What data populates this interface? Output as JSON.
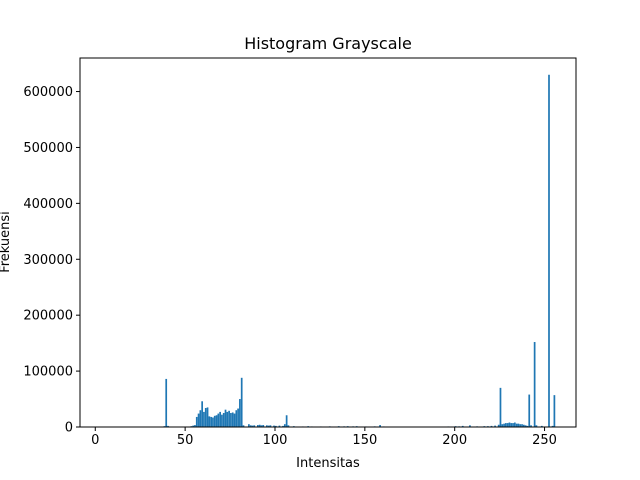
{
  "chart_data": {
    "type": "bar",
    "title": "Histogram Grayscale",
    "xlabel": "Intensitas",
    "ylabel": "Frekuensi",
    "xlim": [
      -8.5,
      267.5
    ],
    "ylim": [
      0,
      660000
    ],
    "xticks": [
      0,
      50,
      100,
      150,
      200,
      250
    ],
    "yticks": [
      0,
      100000,
      200000,
      300000,
      400000,
      500000,
      600000
    ],
    "bar_color": "#1f77b4",
    "grid": false,
    "bins": [
      {
        "x": 0,
        "value": 300
      },
      {
        "x": 3,
        "value": 200
      },
      {
        "x": 7,
        "value": 150
      },
      {
        "x": 10,
        "value": 200
      },
      {
        "x": 14,
        "value": 150
      },
      {
        "x": 18,
        "value": 200
      },
      {
        "x": 21,
        "value": 200
      },
      {
        "x": 24,
        "value": 300
      },
      {
        "x": 26,
        "value": 800
      },
      {
        "x": 28,
        "value": 300
      },
      {
        "x": 31,
        "value": 400
      },
      {
        "x": 33,
        "value": 500
      },
      {
        "x": 35,
        "value": 800
      },
      {
        "x": 38,
        "value": 1500
      },
      {
        "x": 39,
        "value": 86000
      },
      {
        "x": 40,
        "value": 2000
      },
      {
        "x": 42,
        "value": 500
      },
      {
        "x": 44,
        "value": 500
      },
      {
        "x": 46,
        "value": 600
      },
      {
        "x": 48,
        "value": 700
      },
      {
        "x": 50,
        "value": 800
      },
      {
        "x": 52,
        "value": 900
      },
      {
        "x": 53,
        "value": 1500
      },
      {
        "x": 54,
        "value": 2500
      },
      {
        "x": 55,
        "value": 3500
      },
      {
        "x": 56,
        "value": 18000
      },
      {
        "x": 57,
        "value": 24000
      },
      {
        "x": 58,
        "value": 30000
      },
      {
        "x": 59,
        "value": 46000
      },
      {
        "x": 60,
        "value": 27000
      },
      {
        "x": 61,
        "value": 34000
      },
      {
        "x": 62,
        "value": 35000
      },
      {
        "x": 63,
        "value": 19000
      },
      {
        "x": 64,
        "value": 18000
      },
      {
        "x": 65,
        "value": 17000
      },
      {
        "x": 66,
        "value": 20000
      },
      {
        "x": 67,
        "value": 21000
      },
      {
        "x": 68,
        "value": 24000
      },
      {
        "x": 69,
        "value": 27000
      },
      {
        "x": 70,
        "value": 22000
      },
      {
        "x": 71,
        "value": 25000
      },
      {
        "x": 72,
        "value": 31000
      },
      {
        "x": 73,
        "value": 27000
      },
      {
        "x": 74,
        "value": 29000
      },
      {
        "x": 75,
        "value": 25000
      },
      {
        "x": 76,
        "value": 26000
      },
      {
        "x": 77,
        "value": 24000
      },
      {
        "x": 78,
        "value": 30000
      },
      {
        "x": 79,
        "value": 33000
      },
      {
        "x": 80,
        "value": 50000
      },
      {
        "x": 81,
        "value": 88000
      },
      {
        "x": 82,
        "value": 3000
      },
      {
        "x": 85,
        "value": 5000
      },
      {
        "x": 86,
        "value": 3000
      },
      {
        "x": 87,
        "value": 2500
      },
      {
        "x": 88,
        "value": 3000
      },
      {
        "x": 90,
        "value": 3500
      },
      {
        "x": 91,
        "value": 4000
      },
      {
        "x": 92,
        "value": 3000
      },
      {
        "x": 93,
        "value": 3500
      },
      {
        "x": 95,
        "value": 3000
      },
      {
        "x": 96,
        "value": 2500
      },
      {
        "x": 97,
        "value": 3000
      },
      {
        "x": 99,
        "value": 2500
      },
      {
        "x": 100,
        "value": 2000
      },
      {
        "x": 102,
        "value": 2500
      },
      {
        "x": 104,
        "value": 2000
      },
      {
        "x": 105,
        "value": 5000
      },
      {
        "x": 106,
        "value": 21000
      },
      {
        "x": 107,
        "value": 3000
      },
      {
        "x": 110,
        "value": 1500
      },
      {
        "x": 115,
        "value": 1000
      },
      {
        "x": 118,
        "value": 1500
      },
      {
        "x": 120,
        "value": 1000
      },
      {
        "x": 125,
        "value": 1000
      },
      {
        "x": 130,
        "value": 1200
      },
      {
        "x": 135,
        "value": 1500
      },
      {
        "x": 138,
        "value": 1200
      },
      {
        "x": 140,
        "value": 1500
      },
      {
        "x": 143,
        "value": 1200
      },
      {
        "x": 145,
        "value": 1500
      },
      {
        "x": 150,
        "value": 1000
      },
      {
        "x": 155,
        "value": 1200
      },
      {
        "x": 158,
        "value": 3500
      },
      {
        "x": 160,
        "value": 1000
      },
      {
        "x": 170,
        "value": 800
      },
      {
        "x": 180,
        "value": 800
      },
      {
        "x": 190,
        "value": 800
      },
      {
        "x": 196,
        "value": 1000
      },
      {
        "x": 200,
        "value": 1500
      },
      {
        "x": 202,
        "value": 1200
      },
      {
        "x": 204,
        "value": 2000
      },
      {
        "x": 208,
        "value": 3000
      },
      {
        "x": 212,
        "value": 1200
      },
      {
        "x": 216,
        "value": 1500
      },
      {
        "x": 218,
        "value": 1500
      },
      {
        "x": 220,
        "value": 2000
      },
      {
        "x": 222,
        "value": 2500
      },
      {
        "x": 224,
        "value": 4000
      },
      {
        "x": 225,
        "value": 70000
      },
      {
        "x": 226,
        "value": 5000
      },
      {
        "x": 227,
        "value": 6000
      },
      {
        "x": 228,
        "value": 7000
      },
      {
        "x": 229,
        "value": 7000
      },
      {
        "x": 230,
        "value": 8000
      },
      {
        "x": 231,
        "value": 7000
      },
      {
        "x": 232,
        "value": 7000
      },
      {
        "x": 233,
        "value": 8000
      },
      {
        "x": 234,
        "value": 6000
      },
      {
        "x": 235,
        "value": 6000
      },
      {
        "x": 236,
        "value": 5000
      },
      {
        "x": 237,
        "value": 5000
      },
      {
        "x": 238,
        "value": 4000
      },
      {
        "x": 239,
        "value": 3000
      },
      {
        "x": 240,
        "value": 2000
      },
      {
        "x": 241,
        "value": 58000
      },
      {
        "x": 242,
        "value": 3000
      },
      {
        "x": 244,
        "value": 152000
      },
      {
        "x": 245,
        "value": 3000
      },
      {
        "x": 248,
        "value": 2000
      },
      {
        "x": 252,
        "value": 630000
      },
      {
        "x": 254,
        "value": 2000
      },
      {
        "x": 255,
        "value": 57000
      }
    ]
  }
}
